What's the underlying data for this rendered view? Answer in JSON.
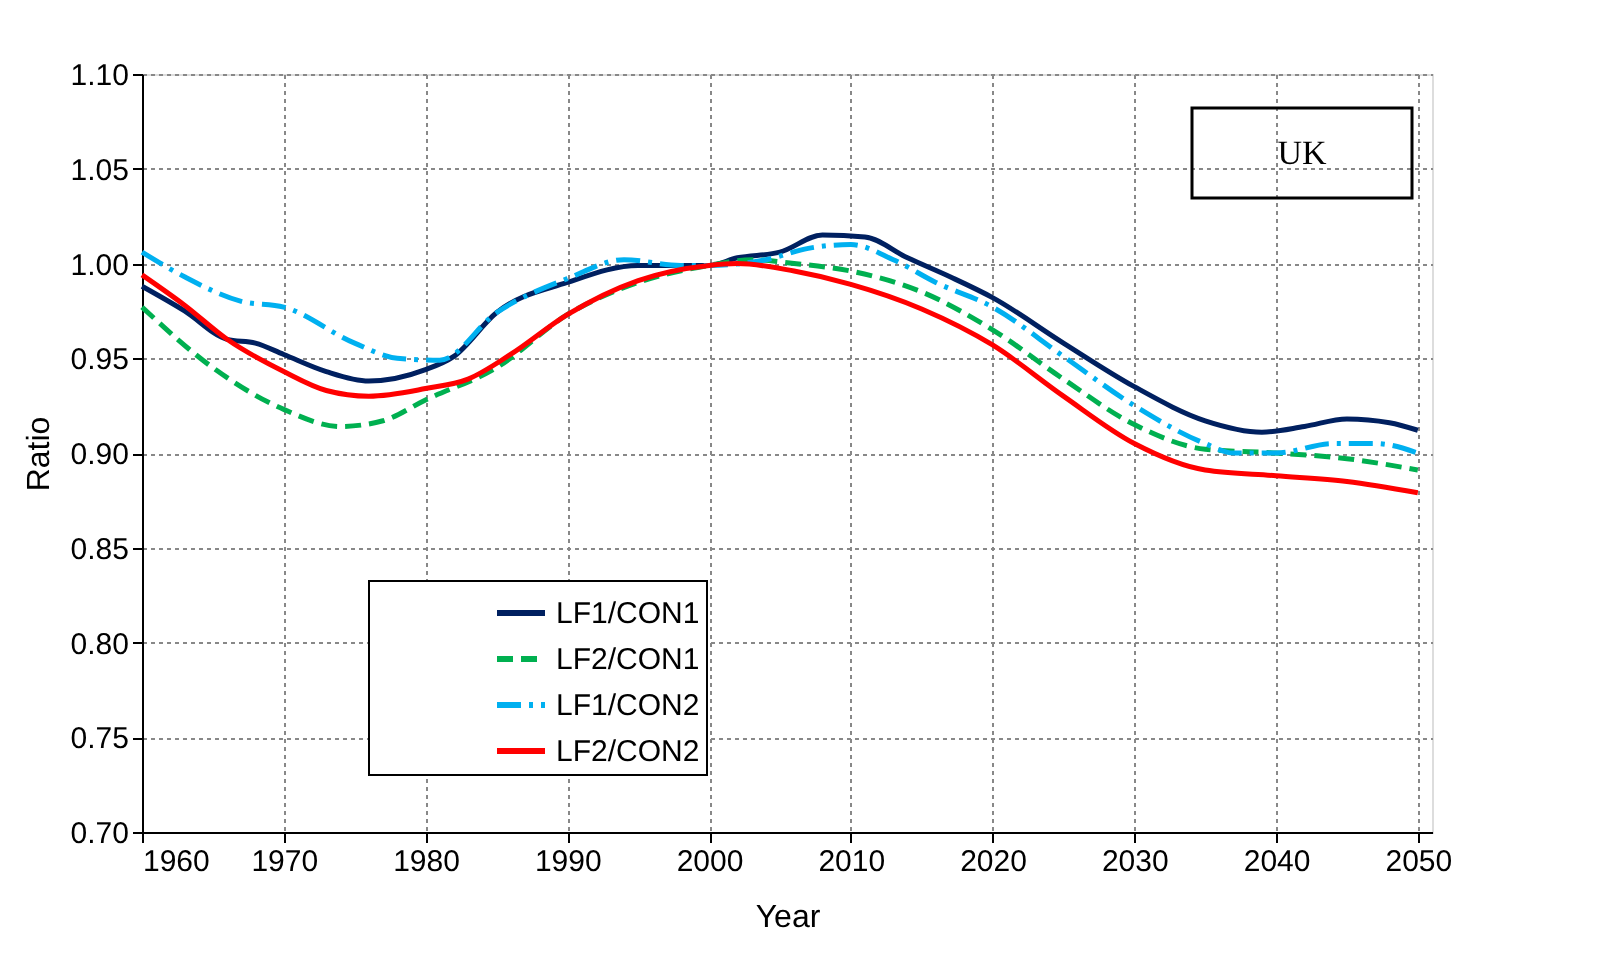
{
  "chart_data": {
    "type": "line",
    "xlabel": "Year",
    "ylabel": "Ratio",
    "xlim": [
      1960,
      2051
    ],
    "ylim": [
      0.7,
      1.1
    ],
    "xticks": [
      1960,
      1970,
      1980,
      1990,
      2000,
      2010,
      2020,
      2030,
      2040,
      2050
    ],
    "yticks": [
      {
        "value": 0.7,
        "label": "0.70"
      },
      {
        "value": 0.75,
        "label": "0.75"
      },
      {
        "value": 0.8,
        "label": "0.80"
      },
      {
        "value": 0.85,
        "label": "0.85"
      },
      {
        "value": 0.9,
        "label": "0.90"
      },
      {
        "value": 0.95,
        "label": "0.95"
      },
      {
        "value": 1.0,
        "label": "1.00"
      },
      {
        "value": 1.05,
        "label": "1.05"
      },
      {
        "value": 1.1,
        "label": "1.10"
      }
    ],
    "grid": true,
    "legend": "bottom left",
    "annotations": [
      "UK"
    ],
    "series": [
      {
        "name": "LF1/CON1",
        "color": "#002060",
        "line_style": "solid",
        "x": [
          1960,
          1963,
          1966,
          1968,
          1970,
          1973,
          1976,
          1980,
          1982,
          1985,
          1990,
          1995,
          2000,
          2002,
          2005,
          2008,
          2011,
          2014,
          2017,
          2020,
          2025,
          2030,
          2035,
          2039,
          2042,
          2045,
          2048,
          2050
        ],
        "values": [
          0.988,
          0.975,
          0.96,
          0.958,
          0.952,
          0.943,
          0.938,
          0.944,
          0.951,
          0.974,
          0.99,
          0.999,
          0.999,
          1.003,
          1.006,
          1.015,
          1.014,
          1.003,
          0.993,
          0.982,
          0.958,
          0.935,
          0.917,
          0.911,
          0.914,
          0.918,
          0.916,
          0.912
        ]
      },
      {
        "name": "LF2/CON1",
        "color": "#00b050",
        "line_style": "dashed",
        "x": [
          1960,
          1965,
          1970,
          1974,
          1977,
          1980,
          1985,
          1990,
          1995,
          2000,
          2003,
          2006,
          2010,
          2015,
          2020,
          2025,
          2030,
          2035,
          2040,
          2045,
          2050
        ],
        "values": [
          0.977,
          0.945,
          0.923,
          0.914,
          0.917,
          0.928,
          0.945,
          0.973,
          0.99,
          0.999,
          1.002,
          1.0,
          0.996,
          0.985,
          0.965,
          0.939,
          0.915,
          0.902,
          0.9,
          0.897,
          0.891
        ]
      },
      {
        "name": "LF1/CON2",
        "color": "#00b0f0",
        "line_style": "dashdot",
        "x": [
          1960,
          1963,
          1967,
          1970,
          1975,
          1978,
          1981,
          1985,
          1990,
          1994,
          1998,
          2000,
          2004,
          2007,
          2010,
          2013,
          2016,
          2020,
          2025,
          2030,
          2035,
          2037,
          2040,
          2044,
          2047,
          2050
        ],
        "values": [
          1.006,
          0.993,
          0.98,
          0.977,
          0.958,
          0.95,
          0.949,
          0.974,
          0.992,
          1.002,
          0.999,
          0.999,
          1.002,
          1.008,
          1.01,
          1.002,
          0.99,
          0.977,
          0.951,
          0.925,
          0.905,
          0.9,
          0.9,
          0.905,
          0.905,
          0.9
        ]
      },
      {
        "name": "LF2/CON2",
        "color": "#ff0000",
        "line_style": "solid",
        "x": [
          1960,
          1963,
          1966,
          1970,
          1973,
          1976,
          1980,
          1983,
          1986,
          1990,
          1995,
          2000,
          2002,
          2006,
          2010,
          2015,
          2020,
          2025,
          2030,
          2035,
          2040,
          2045,
          2050
        ],
        "values": [
          0.994,
          0.978,
          0.96,
          0.943,
          0.933,
          0.93,
          0.934,
          0.939,
          0.952,
          0.973,
          0.991,
          0.999,
          1.0,
          0.996,
          0.989,
          0.976,
          0.957,
          0.93,
          0.905,
          0.891,
          0.888,
          0.885,
          0.879
        ]
      }
    ]
  }
}
